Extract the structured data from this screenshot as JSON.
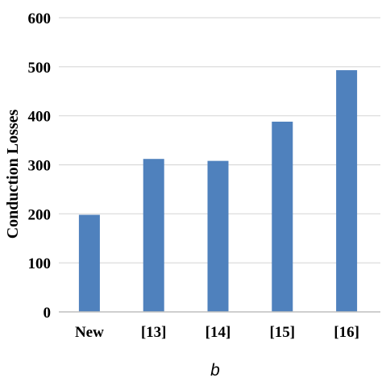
{
  "chart_data": {
    "type": "bar",
    "title": "",
    "xlabel": "",
    "ylabel": "Conduction Losses",
    "categories": [
      "New",
      "[13]",
      "[14]",
      "[15]",
      "[16]"
    ],
    "values": [
      198,
      312,
      308,
      388,
      493
    ],
    "ylim": [
      0,
      600
    ],
    "yticks": [
      0,
      100,
      200,
      300,
      400,
      500,
      600
    ],
    "grid": true,
    "legend": "none",
    "bar_color": "#4f81bd",
    "grid_color": "#d9d9d9",
    "panel_label": "b"
  }
}
